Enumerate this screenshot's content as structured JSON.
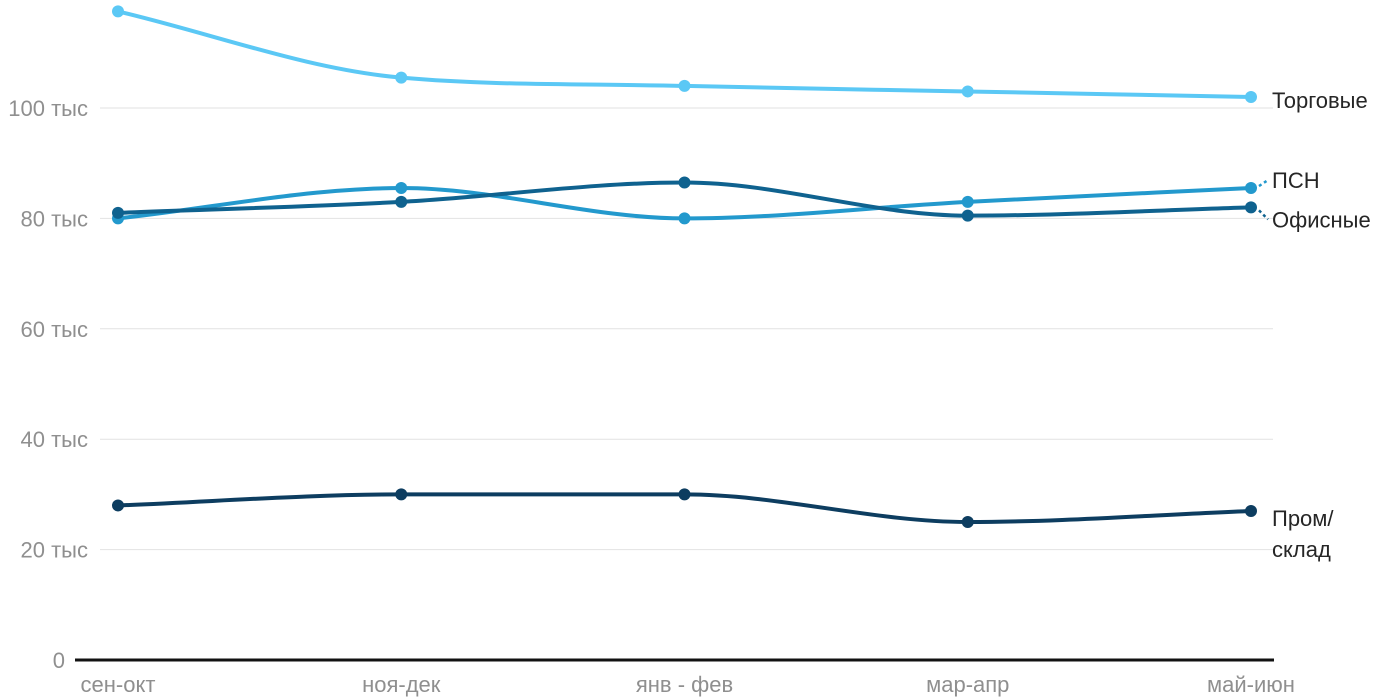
{
  "chart_data": {
    "type": "line",
    "title": "",
    "categories": [
      "сен-окт",
      "ноя-дек",
      "янв - фев",
      "мар-апр",
      "май-июн"
    ],
    "series": [
      {
        "name": "Торговые",
        "values": [
          117.5,
          105.5,
          104,
          103,
          102
        ],
        "color": "#5BC8F5",
        "label_lines": [
          "Торговые"
        ]
      },
      {
        "name": "ПСН",
        "values": [
          80,
          85.5,
          80,
          83,
          85.5
        ],
        "color": "#2399CD",
        "label_lines": [
          "ПСН"
        ]
      },
      {
        "name": "Офисные",
        "values": [
          81,
          83,
          86.5,
          80.5,
          82
        ],
        "color": "#0F628F",
        "label_lines": [
          "Офисные"
        ]
      },
      {
        "name": "Пром/склад",
        "values": [
          28,
          30,
          30,
          25,
          27
        ],
        "color": "#0D3D60",
        "label_lines": [
          "Пром/",
          "склад"
        ]
      }
    ],
    "y_ticks": [
      {
        "value": 100,
        "label": "100 тыс"
      },
      {
        "value": 80,
        "label": "80 тыс"
      },
      {
        "value": 60,
        "label": "60 тыс"
      },
      {
        "value": 40,
        "label": "40 тыс"
      },
      {
        "value": 20,
        "label": "20 тыс"
      },
      {
        "value": 0,
        "label": "0"
      }
    ],
    "ylim": [
      0,
      119.5
    ],
    "xlabel": "",
    "ylabel": "",
    "grid": "horizontal-only",
    "legend_position": "labels-at-line-ends-right",
    "line_style": "smooth-with-point-markers",
    "colors": {
      "grid": "#E2E2E2",
      "axis": "#121212",
      "tick_text": "#8F8F8F",
      "label_text": "#262626",
      "background": "#FFFFFF"
    }
  }
}
